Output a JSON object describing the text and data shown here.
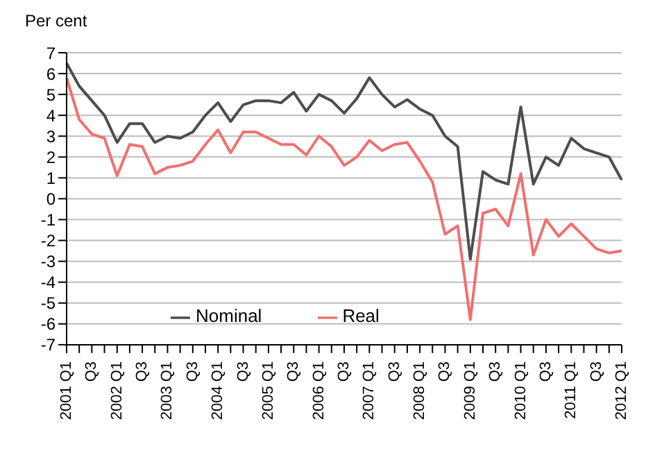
{
  "chart_data": {
    "type": "line",
    "ylabel": "Per cent",
    "categories": [
      "2001 Q1",
      null,
      "Q3",
      null,
      "2002 Q1",
      null,
      "Q3",
      null,
      "2003 Q1",
      null,
      "Q3",
      null,
      "2004 Q1",
      null,
      "Q3",
      null,
      "2005 Q1",
      null,
      "Q3",
      null,
      "2006 Q1",
      null,
      "Q3",
      null,
      "2007 Q1",
      null,
      "Q3",
      null,
      "2008 Q1",
      null,
      "Q3",
      null,
      "2009 Q1",
      null,
      "Q3",
      null,
      "2010 Q1",
      null,
      "Q3",
      null,
      "2011 Q1",
      null,
      "Q3",
      null,
      "2012 Q1"
    ],
    "series": [
      {
        "name": "Nominal",
        "color": "#4d4d4d",
        "values": [
          6.5,
          5.4,
          4.7,
          4.0,
          2.7,
          3.6,
          3.6,
          2.7,
          3.0,
          2.9,
          3.2,
          4.0,
          4.6,
          3.7,
          4.5,
          4.7,
          4.7,
          4.6,
          5.1,
          4.2,
          5.0,
          4.7,
          4.1,
          4.8,
          5.8,
          5.0,
          4.4,
          4.75,
          4.3,
          4.0,
          3.0,
          2.5,
          -2.9,
          1.3,
          0.9,
          0.7,
          4.4,
          0.7,
          2.0,
          1.6,
          2.9,
          2.4,
          2.2,
          2.0,
          0.9
        ]
      },
      {
        "name": "Real",
        "color": "#f07070",
        "values": [
          5.8,
          3.8,
          3.1,
          2.9,
          1.1,
          2.6,
          2.5,
          1.2,
          1.5,
          1.6,
          1.8,
          2.6,
          3.3,
          2.2,
          3.2,
          3.2,
          2.9,
          2.6,
          2.6,
          2.1,
          3.0,
          2.5,
          1.6,
          2.0,
          2.8,
          2.3,
          2.6,
          2.7,
          1.8,
          0.8,
          -1.7,
          -1.3,
          -5.8,
          -0.7,
          -0.5,
          -1.3,
          1.2,
          -2.7,
          -1.0,
          -1.8,
          -1.2,
          -1.8,
          -2.4,
          -2.6,
          -2.5
        ]
      }
    ],
    "ylim": [
      -7,
      7
    ],
    "yticks": [
      -7,
      -6,
      -5,
      -4,
      -3,
      -2,
      -1,
      0,
      1,
      2,
      3,
      4,
      5,
      6,
      7
    ],
    "grid": "y",
    "legend": "bottom",
    "marker": "none",
    "line_style": "solid"
  }
}
